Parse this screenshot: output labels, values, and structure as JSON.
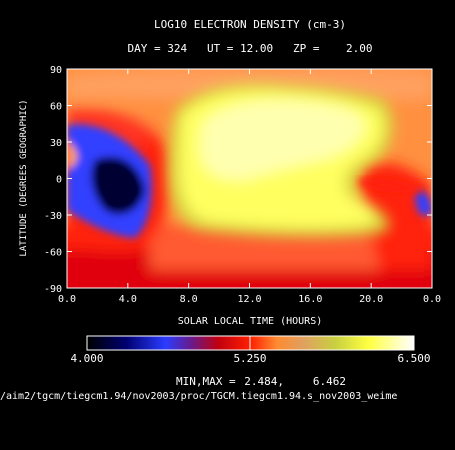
{
  "chart_data": {
    "type": "heatmap",
    "title": "LOG10 ELECTRON DENSITY (cm-3)",
    "subtitle": "DAY = 324   UT = 12.00   ZP =    2.00",
    "xlabel": "SOLAR LOCAL TIME (HOURS)",
    "ylabel": "LATITUDE (DEGREES GEOGRAPHIC)",
    "x_ticks": [
      "0.0",
      "4.0",
      "8.0",
      "12.0",
      "16.0",
      "20.0",
      "0.0"
    ],
    "y_ticks": [
      "90",
      "60",
      "30",
      "0",
      "-30",
      "-60",
      "-90"
    ],
    "xlim": [
      0,
      24
    ],
    "ylim": [
      -90,
      90
    ],
    "colorbar": {
      "min_label": "4.000",
      "mid_label": "5.250",
      "max_label": "6.500",
      "range": [
        4.0,
        6.5
      ]
    },
    "minmax_label": "MIN,MAX =",
    "min_value": "2.484,",
    "max_value": "6.462",
    "file_path": "/aim2/tgcm/tiegcm1.94/nov2003/proc/TGCM.tiegcm1.94.s_nov2003_weime",
    "colors": {
      "background": "#000000",
      "deep_blue": "#0a0a90",
      "blue": "#3040ff",
      "red": "#ff1010",
      "orange": "#ff8c30",
      "light_orange": "#ffa060",
      "yellow_green": "#e0e040",
      "yellow": "#ffff60",
      "pale_yellow": "#ffffb0"
    }
  }
}
